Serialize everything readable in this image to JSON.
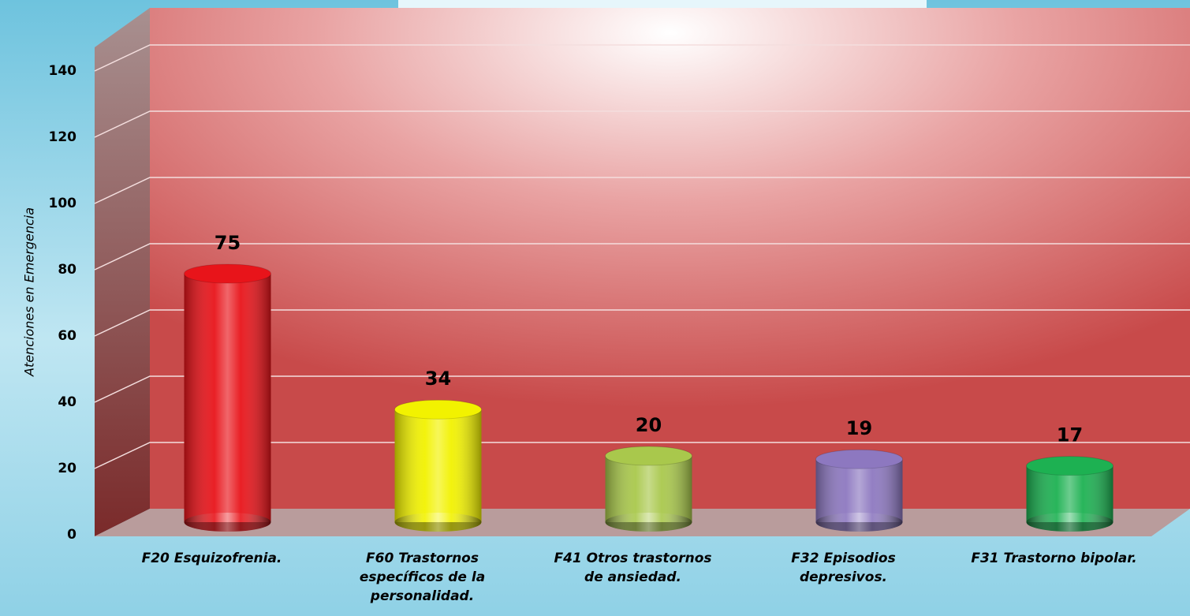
{
  "chart_data": {
    "type": "bar",
    "y_label": "Atenciones en Emergencia",
    "categories": [
      "F20 Esquizofrenia.",
      "F60 Trastornos específicos de la personalidad.",
      "F41 Otros trastornos de ansiedad.",
      "F32 Episodios depresivos.",
      "F31 Trastorno bipolar."
    ],
    "values": [
      75,
      34,
      20,
      19,
      17
    ],
    "colors": [
      "#e8141a",
      "#f2f200",
      "#a9c84c",
      "#8d78c0",
      "#1db152"
    ],
    "ylim": [
      0,
      150
    ],
    "yticks": [
      0,
      20,
      40,
      60,
      80,
      100,
      120,
      140
    ],
    "grid": true
  }
}
